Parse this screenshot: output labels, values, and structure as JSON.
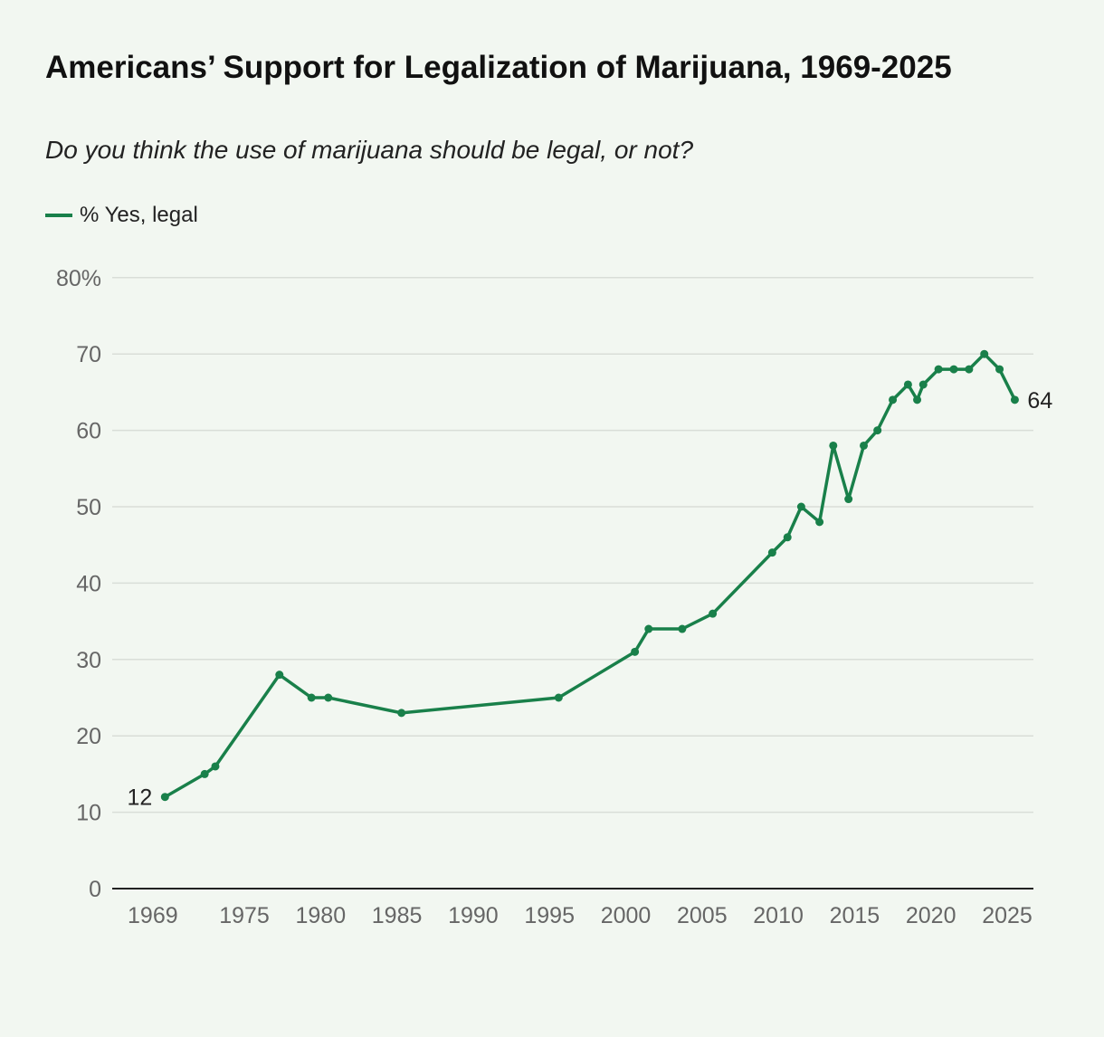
{
  "chart_data": {
    "type": "line",
    "title": "Americans’ Support for Legalization of Marijuana, 1969-2025",
    "subtitle": "Do you think the use of marijuana should be legal, or not?",
    "xlabel": "",
    "ylabel": "",
    "xlim": [
      1966,
      2029
    ],
    "ylim": [
      0,
      80
    ],
    "x_ticks": [
      1969,
      1975,
      1980,
      1985,
      1990,
      1995,
      2000,
      2005,
      2010,
      2015,
      2020,
      2025
    ],
    "y_ticks": [
      0,
      10,
      20,
      30,
      40,
      50,
      60,
      70,
      80
    ],
    "y_tick_labels": [
      "0",
      "10",
      "20",
      "30",
      "40",
      "50",
      "60",
      "70",
      "80%"
    ],
    "grid": "horizontal",
    "legend": "top-left",
    "color": "#19804a",
    "series": [
      {
        "name": "% Yes, legal",
        "x": [
          1969.8,
          1972.4,
          1973.1,
          1977.3,
          1979.4,
          1980.5,
          1985.3,
          1995.6,
          2000.6,
          2001.5,
          2003.7,
          2005.7,
          2009.6,
          2010.6,
          2011.5,
          2012.7,
          2013.6,
          2014.6,
          2015.6,
          2016.5,
          2017.5,
          2018.5,
          2019.1,
          2019.5,
          2020.5,
          2021.5,
          2022.5,
          2023.5,
          2024.5,
          2025.5
        ],
        "values": [
          12,
          15,
          16,
          28,
          25,
          25,
          23,
          25,
          31,
          34,
          34,
          36,
          44,
          46,
          50,
          48,
          58,
          51,
          58,
          60,
          64,
          66,
          64,
          66,
          68,
          68,
          68,
          70,
          68,
          64
        ]
      }
    ],
    "data_labels": {
      "first": "12",
      "last": "64"
    }
  }
}
